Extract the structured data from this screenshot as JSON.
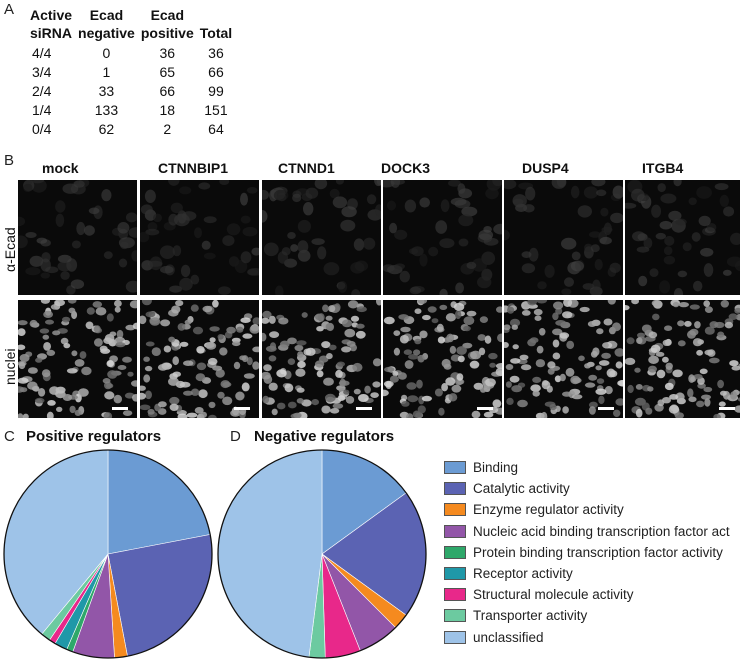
{
  "panel_labels": {
    "a": "A",
    "b": "B",
    "c": "C",
    "d": "D"
  },
  "table_a": {
    "headers": [
      [
        "Active",
        "siRNA"
      ],
      [
        "Ecad",
        "negative"
      ],
      [
        "Ecad",
        "positive"
      ],
      [
        "",
        "Total"
      ]
    ],
    "rows": [
      [
        "4/4",
        "0",
        "36",
        "36"
      ],
      [
        "3/4",
        "1",
        "65",
        "66"
      ],
      [
        "2/4",
        "33",
        "66",
        "99"
      ],
      [
        "1/4",
        "133",
        "18",
        "151"
      ],
      [
        "0/4",
        "62",
        "2",
        "64"
      ]
    ]
  },
  "panel_b": {
    "columns": [
      "mock",
      "CTNNBIP1",
      "CTNND1",
      "DOCK3",
      "DUSP4",
      "ITGB4"
    ],
    "rows": [
      "α-Ecad",
      "nuclei"
    ]
  },
  "chart_data": [
    {
      "type": "pie",
      "title": "Positive regulators",
      "categories": [
        "Binding",
        "Catalytic activity",
        "Enzyme regulator activity",
        "Nucleic acid binding transcription factor act",
        "Protein binding transcription factor activity",
        "Receptor activity",
        "Structural molecule activity",
        "Transporter activity",
        "unclassified"
      ],
      "values": [
        22,
        25,
        2,
        6.5,
        1,
        2,
        1,
        1.5,
        39
      ],
      "colors": [
        "#6b9bd3",
        "#5b63b3",
        "#f58a1f",
        "#9256a8",
        "#2ea86a",
        "#1f98a8",
        "#e8288a",
        "#6ccaa0",
        "#9ec3e8"
      ]
    },
    {
      "type": "pie",
      "title": "Negative regulators",
      "categories": [
        "Binding",
        "Catalytic activity",
        "Enzyme regulator activity",
        "Nucleic acid binding transcription factor act",
        "Protein binding transcription factor activity",
        "Receptor activity",
        "Structural molecule activity",
        "Transporter activity",
        "unclassified"
      ],
      "values": [
        15,
        20,
        2.5,
        6.5,
        0,
        0,
        5.5,
        2.5,
        48
      ],
      "colors": [
        "#6b9bd3",
        "#5b63b3",
        "#f58a1f",
        "#9256a8",
        "#2ea86a",
        "#1f98a8",
        "#e8288a",
        "#6ccaa0",
        "#9ec3e8"
      ]
    }
  ]
}
